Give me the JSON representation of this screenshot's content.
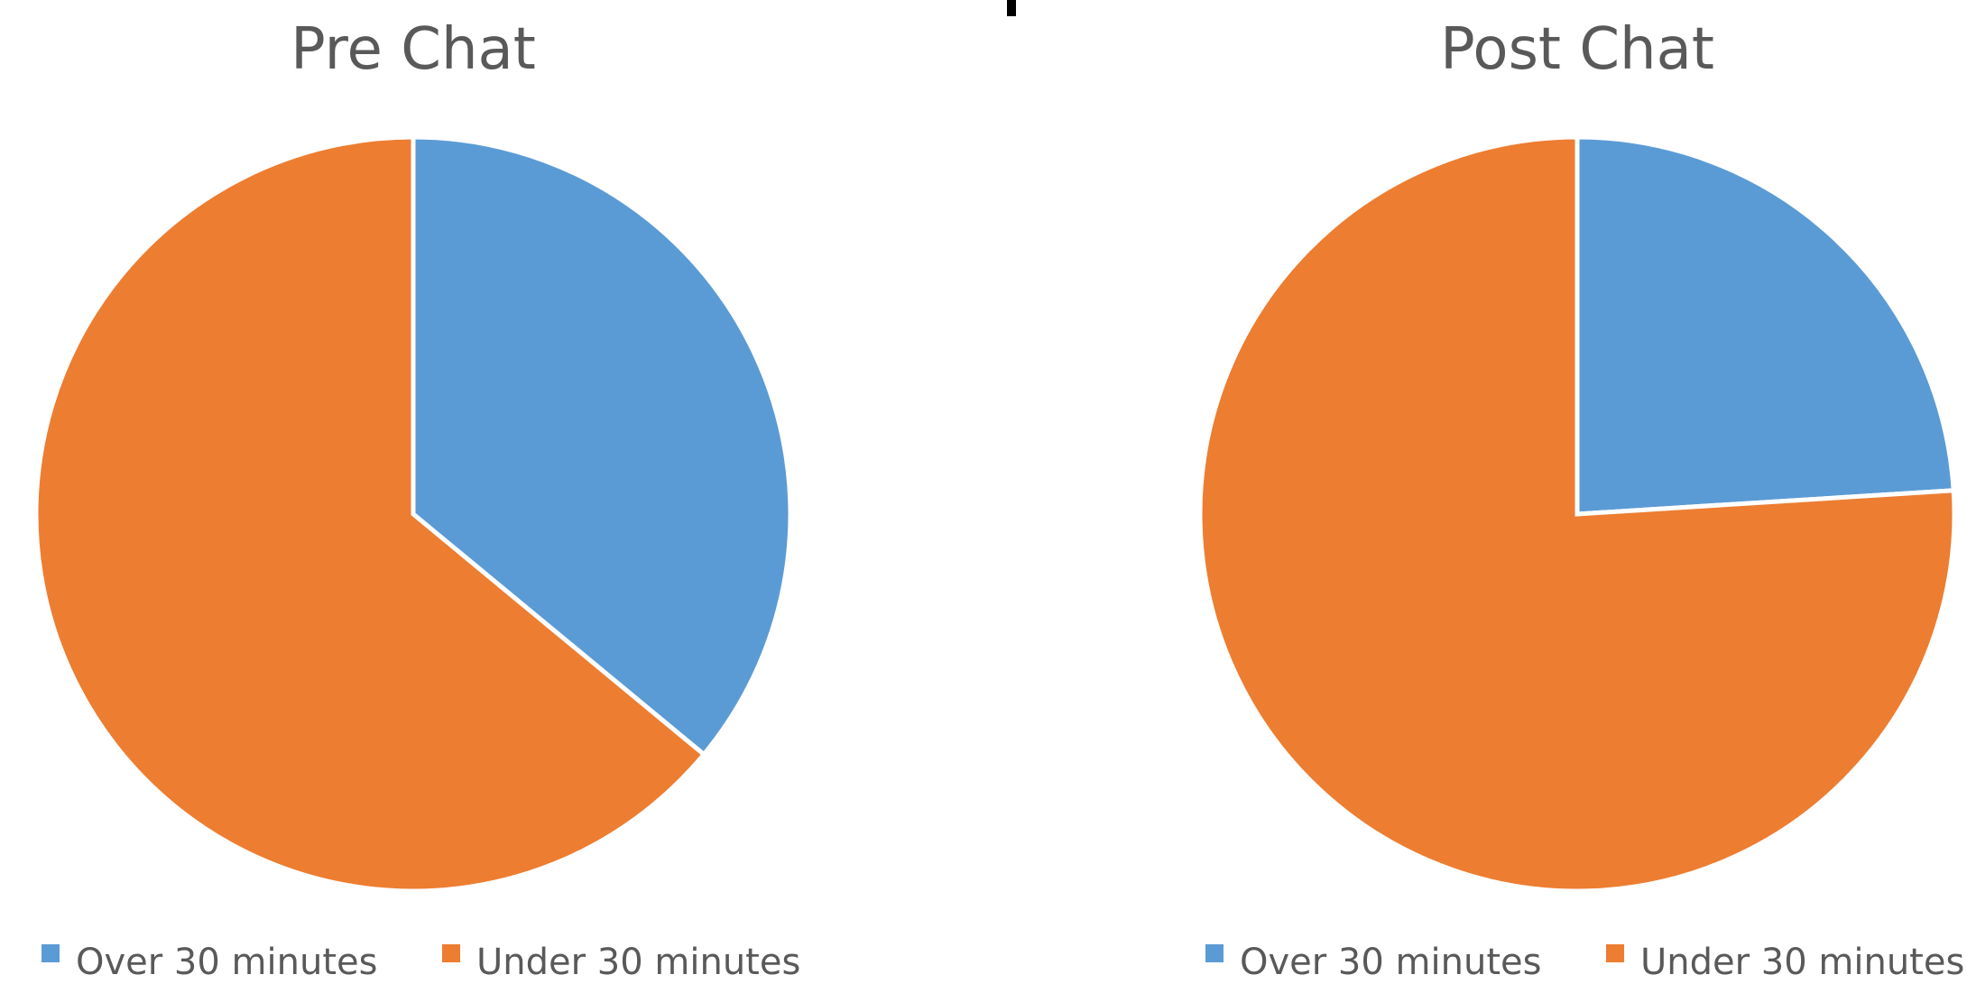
{
  "chart_data": [
    {
      "type": "pie",
      "title": "Pre Chat",
      "categories": [
        "Over 30 minutes",
        "Under 30 minutes"
      ],
      "values": [
        36,
        64
      ],
      "colors": [
        "#5B9BD5",
        "#ED7D31"
      ],
      "legend": "bottom"
    },
    {
      "type": "pie",
      "title": "Post Chat",
      "categories": [
        "Over 30 minutes",
        "Under 30 minutes"
      ],
      "values": [
        24,
        76
      ],
      "colors": [
        "#5B9BD5",
        "#ED7D31"
      ],
      "legend": "bottom"
    }
  ]
}
